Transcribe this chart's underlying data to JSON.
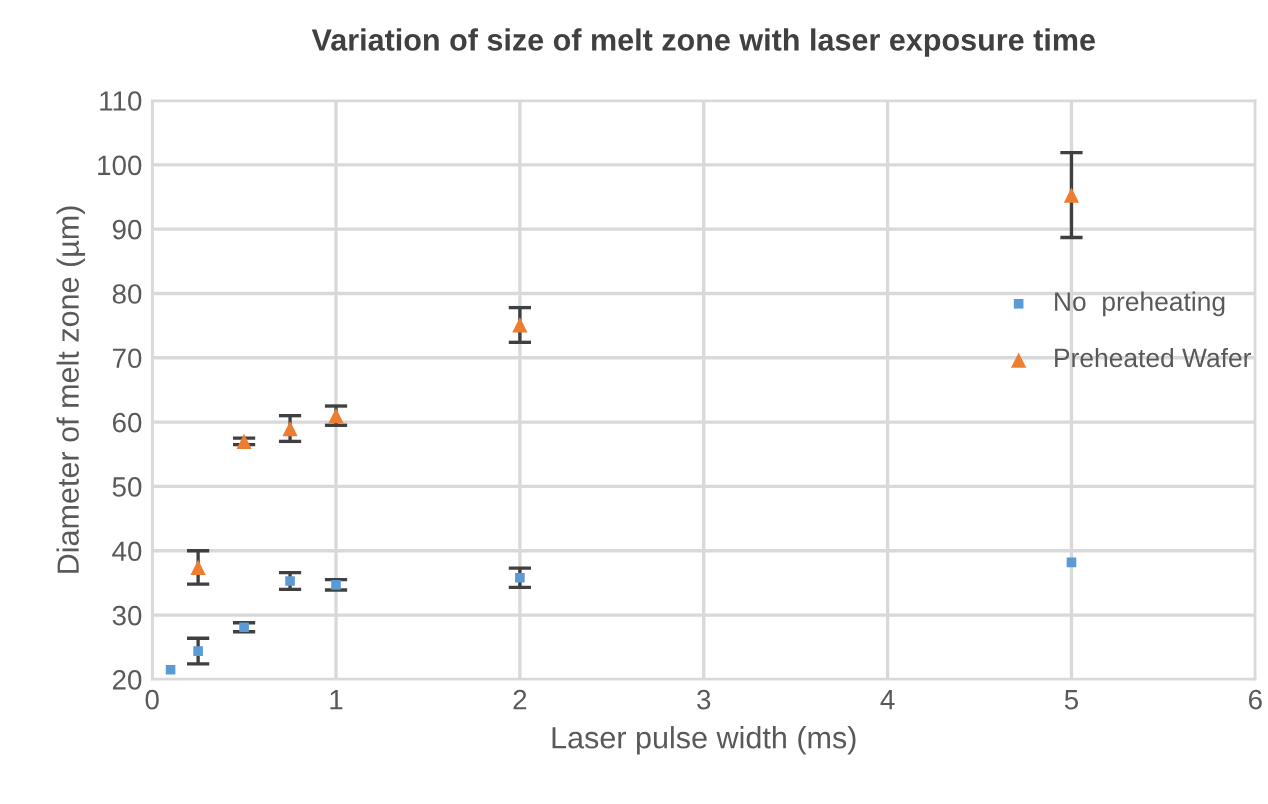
{
  "chart_data": {
    "type": "scatter",
    "title": "Variation of size of melt zone with laser exposure time",
    "xlabel": "Laser pulse width (ms)",
    "ylabel": "Diameter of melt zone (µm)",
    "series": [
      {
        "name": "No  preheating",
        "color": "#5b9bd5",
        "marker": "square",
        "x": [
          0.1,
          0.25,
          0.5,
          0.75,
          1,
          2,
          5
        ],
        "values": [
          21.5,
          24.4,
          28.1,
          35.3,
          34.7,
          35.8,
          38.2
        ],
        "errors": [
          null,
          2,
          0.7,
          1.3,
          0.8,
          1.5,
          null
        ]
      },
      {
        "name": "Preheated Wafer",
        "color": "#ed7d31",
        "marker": "triangle",
        "x": [
          0.25,
          0.5,
          0.75,
          1,
          2,
          5
        ],
        "values": [
          37.4,
          57,
          59,
          61,
          75.1,
          95.3
        ],
        "errors": [
          2.6,
          0.5,
          2,
          1.5,
          2.7,
          6.6
        ]
      }
    ],
    "xlim": [
      0,
      6
    ],
    "xticks": [
      0,
      1,
      2,
      3,
      4,
      5,
      6
    ],
    "ylim": [
      20,
      110
    ],
    "yticks": [
      20,
      30,
      40,
      50,
      60,
      70,
      80,
      90,
      100,
      110
    ],
    "grid": true,
    "legend": "right"
  }
}
